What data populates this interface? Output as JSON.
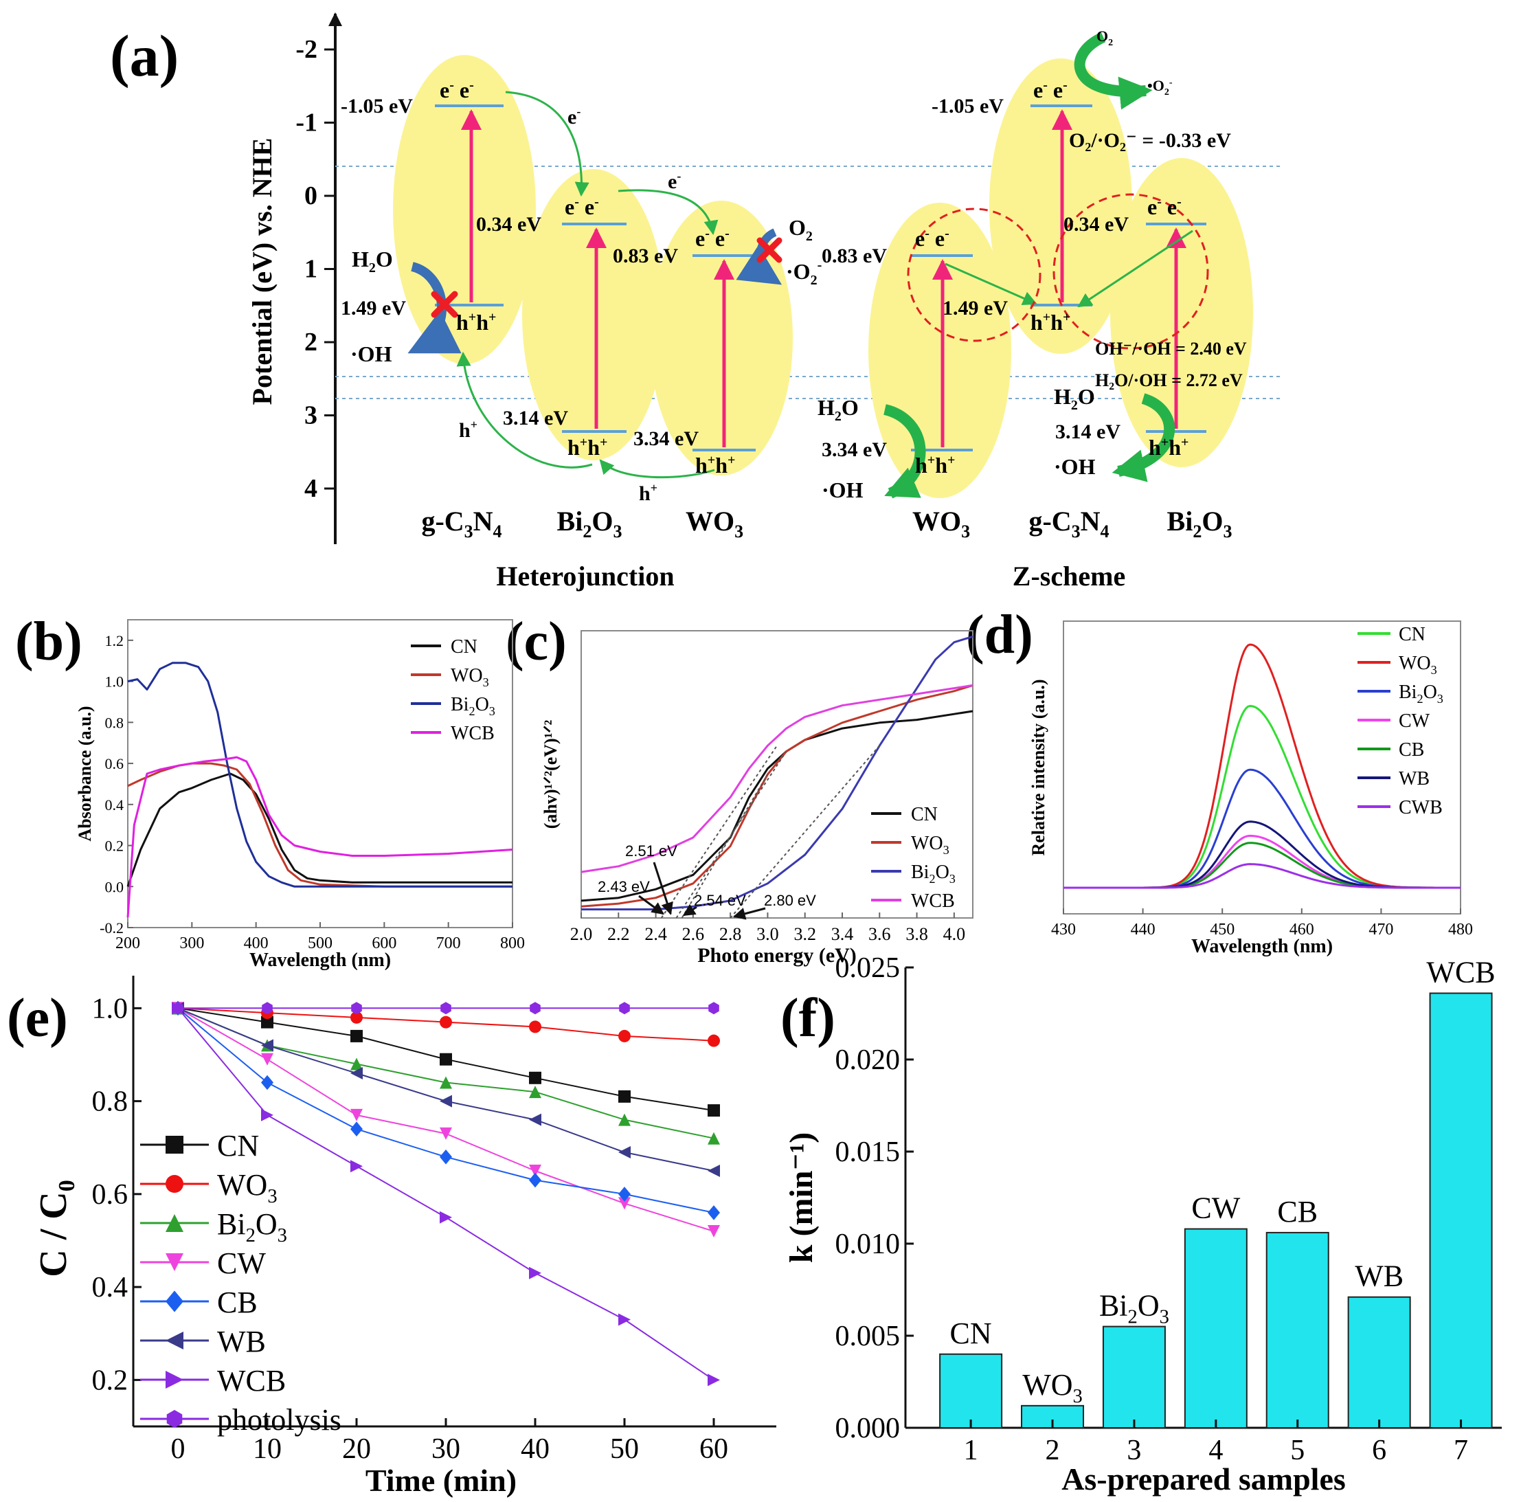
{
  "panel_labels": {
    "a": "(a)",
    "b": "(b)",
    "c": "(c)",
    "d": "(d)",
    "e": "(e)",
    "f": "(f)"
  },
  "colors": {
    "ellipse": "#fbf392",
    "band_arrow": "#f0257a",
    "band_line": "#5aa0d8",
    "green": "#2cb34a",
    "thick_green": "#26b24a",
    "cross": "#ee1c24",
    "ring": "#e02020",
    "dotted": "#7aa8cc",
    "bar": "#22e4ec"
  },
  "panel_a": {
    "ylabel": "Potential (eV) vs. NHE",
    "ticks": [
      "-2",
      "-1",
      "0",
      "1",
      "2",
      "3",
      "4"
    ],
    "heterojunction_title": "Heterojunction",
    "zscheme_title": "Z-scheme",
    "materials": {
      "het_gcn": {
        "formula": "g-C",
        "sub1": "3",
        "mid": "N",
        "sub2": "4"
      },
      "het_bi": {
        "formula": "Bi",
        "sub1": "2",
        "mid": "O",
        "sub2": "3"
      },
      "het_wo": {
        "formula": "WO",
        "sub1": "3"
      },
      "z_wo": {
        "formula": "WO",
        "sub1": "3"
      },
      "z_gcn": {
        "formula": "g-C",
        "sub1": "3",
        "mid": "N",
        "sub2": "4"
      },
      "z_bi": {
        "formula": "Bi",
        "sub1": "2",
        "mid": "O",
        "sub2": "3"
      }
    },
    "energies": {
      "gcn_cb": "-1.05 eV",
      "gcn_vb": "1.49 eV",
      "bi_cb": "0.34 eV",
      "bi_vb": "3.14 eV",
      "wo_cb": "0.83 eV",
      "wo_vb": "3.34 eV"
    },
    "carriers": {
      "ee": "e",
      "hh": "h",
      "e": "e",
      "h": "h",
      "minus": "-",
      "plus": "+"
    },
    "species": {
      "h2o": "H",
      "two": "2",
      "o": "O",
      "oh": "·OH",
      "o2": "O",
      "o2rad": "·O",
      "o2rad_full": "•O"
    },
    "redox": {
      "o2": "O₂/·O₂⁻ = -0.33 eV",
      "oh": "OH⁻/·OH = 2.40 eV",
      "h2o": "H₂O/·OH = 2.72 eV"
    }
  },
  "chart_data": [
    {
      "panel": "b",
      "type": "line",
      "xlabel": "Wavelength (nm)",
      "ylabel": "Absorbance (a.u.)",
      "xlim": [
        200,
        800
      ],
      "ylim": [
        -0.2,
        1.3
      ],
      "xticks": [
        200,
        300,
        400,
        500,
        600,
        700,
        800
      ],
      "yticks": [
        -0.2,
        0.0,
        0.2,
        0.4,
        0.6,
        0.8,
        1.0,
        1.2
      ],
      "series": [
        {
          "name": "CN",
          "color": "#111111",
          "x": [
            200,
            220,
            250,
            280,
            300,
            330,
            360,
            380,
            400,
            420,
            440,
            460,
            480,
            500,
            550,
            600,
            700,
            800
          ],
          "y": [
            0.0,
            0.18,
            0.38,
            0.46,
            0.48,
            0.52,
            0.55,
            0.52,
            0.45,
            0.33,
            0.18,
            0.08,
            0.04,
            0.03,
            0.02,
            0.02,
            0.02,
            0.02
          ]
        },
        {
          "name": "WO3",
          "color": "#c0392b",
          "x": [
            200,
            220,
            250,
            280,
            300,
            330,
            350,
            370,
            390,
            410,
            430,
            450,
            470,
            500,
            600,
            700,
            800
          ],
          "y": [
            0.49,
            0.52,
            0.56,
            0.59,
            0.6,
            0.6,
            0.59,
            0.57,
            0.5,
            0.36,
            0.2,
            0.08,
            0.03,
            0.01,
            0.0,
            0.0,
            0.0
          ]
        },
        {
          "name": "Bi2O3",
          "color": "#1f2f99",
          "x": [
            200,
            215,
            230,
            250,
            270,
            290,
            310,
            325,
            340,
            355,
            370,
            385,
            400,
            420,
            440,
            460,
            500,
            600,
            800
          ],
          "y": [
            1.0,
            1.01,
            0.96,
            1.06,
            1.09,
            1.09,
            1.07,
            1.0,
            0.85,
            0.6,
            0.38,
            0.22,
            0.12,
            0.05,
            0.02,
            0.0,
            0.0,
            0.0,
            0.0
          ]
        },
        {
          "name": "WCB",
          "color": "#e020e0",
          "x": [
            200,
            210,
            230,
            250,
            280,
            320,
            350,
            370,
            385,
            400,
            420,
            440,
            460,
            500,
            550,
            600,
            700,
            800
          ],
          "y": [
            -0.15,
            0.3,
            0.55,
            0.57,
            0.59,
            0.61,
            0.62,
            0.63,
            0.61,
            0.52,
            0.35,
            0.25,
            0.2,
            0.17,
            0.15,
            0.15,
            0.16,
            0.18
          ]
        }
      ],
      "legend": [
        "CN",
        "WO3",
        "Bi2O3",
        "WCB"
      ]
    },
    {
      "panel": "c",
      "type": "line",
      "xlabel": "Photo energy (eV)",
      "ylabel": "(ahv)¹ᐟ²(eV)¹ᐟ²",
      "xlim": [
        2.0,
        4.1
      ],
      "ylim": [
        0,
        1.0
      ],
      "xticks": [
        2.0,
        2.2,
        2.4,
        2.6,
        2.8,
        3.0,
        3.2,
        3.4,
        3.6,
        3.8,
        4.0
      ],
      "series": [
        {
          "name": "CN",
          "color": "#111111",
          "x": [
            2.0,
            2.2,
            2.4,
            2.6,
            2.8,
            2.9,
            3.0,
            3.1,
            3.2,
            3.4,
            3.6,
            3.8,
            4.0,
            4.1
          ],
          "y": [
            0.06,
            0.07,
            0.1,
            0.15,
            0.28,
            0.42,
            0.52,
            0.58,
            0.62,
            0.66,
            0.68,
            0.69,
            0.71,
            0.72
          ]
        },
        {
          "name": "WO3",
          "color": "#c0392b",
          "x": [
            2.0,
            2.2,
            2.4,
            2.6,
            2.8,
            2.9,
            3.0,
            3.1,
            3.2,
            3.4,
            3.6,
            3.8,
            4.0,
            4.1
          ],
          "y": [
            0.04,
            0.05,
            0.07,
            0.12,
            0.25,
            0.38,
            0.5,
            0.58,
            0.62,
            0.68,
            0.72,
            0.76,
            0.79,
            0.81
          ]
        },
        {
          "name": "Bi2O3",
          "color": "#3a3ab0",
          "x": [
            2.0,
            2.4,
            2.6,
            2.8,
            3.0,
            3.2,
            3.4,
            3.6,
            3.8,
            3.9,
            4.0,
            4.1
          ],
          "y": [
            0.03,
            0.03,
            0.04,
            0.06,
            0.12,
            0.22,
            0.38,
            0.6,
            0.8,
            0.9,
            0.96,
            0.98
          ]
        },
        {
          "name": "WCB",
          "color": "#e040e0",
          "x": [
            2.0,
            2.2,
            2.4,
            2.6,
            2.8,
            2.9,
            3.0,
            3.1,
            3.2,
            3.4,
            3.6,
            3.8,
            4.0,
            4.1
          ],
          "y": [
            0.16,
            0.18,
            0.22,
            0.28,
            0.42,
            0.52,
            0.6,
            0.66,
            0.7,
            0.74,
            0.76,
            0.78,
            0.8,
            0.81
          ]
        }
      ],
      "annotations": [
        "2.51 eV",
        "2.43 eV",
        "2.54 eV",
        "2.80 eV"
      ],
      "legend": [
        "CN",
        "WO3",
        "Bi2O3",
        "WCB"
      ]
    },
    {
      "panel": "d",
      "type": "line",
      "xlabel": "Wavelength (nm)",
      "ylabel": "Relative intensity (a.u.)",
      "xlim": [
        430,
        480
      ],
      "ylim": [
        0,
        1.1
      ],
      "xticks": [
        430,
        440,
        450,
        460,
        470,
        480
      ],
      "peak_center": 453.5,
      "series": [
        {
          "name": "CN",
          "color": "#33dd33",
          "peak": 0.77
        },
        {
          "name": "WO3",
          "color": "#e02020",
          "peak": 1.03
        },
        {
          "name": "Bi2O3",
          "color": "#2a3fd0",
          "peak": 0.5
        },
        {
          "name": "CW",
          "color": "#ee44ee",
          "peak": 0.22
        },
        {
          "name": "CB",
          "color": "#11991a",
          "peak": 0.19
        },
        {
          "name": "WB",
          "color": "#15157a",
          "peak": 0.28
        },
        {
          "name": "CWB",
          "color": "#9b30e8",
          "peak": 0.1
        }
      ],
      "legend": [
        "CN",
        "WO3",
        "Bi2O3",
        "CW",
        "CB",
        "WB",
        "CWB"
      ]
    },
    {
      "panel": "e",
      "type": "line",
      "xlabel": "Time (min)",
      "ylabel": "C / C0",
      "xlim": [
        -5,
        67
      ],
      "ylim": [
        0.1,
        1.07
      ],
      "xticks": [
        0,
        10,
        20,
        30,
        40,
        50,
        60
      ],
      "yticks": [
        0.2,
        0.4,
        0.6,
        0.8,
        1.0
      ],
      "x": [
        0,
        10,
        20,
        30,
        40,
        50,
        60
      ],
      "series": [
        {
          "name": "CN",
          "color": "#111111",
          "marker": "square",
          "values": [
            1.0,
            0.97,
            0.94,
            0.89,
            0.85,
            0.81,
            0.78
          ]
        },
        {
          "name": "WO3",
          "color": "#ee1111",
          "marker": "circle",
          "values": [
            1.0,
            0.99,
            0.98,
            0.97,
            0.96,
            0.94,
            0.93
          ]
        },
        {
          "name": "Bi2O3",
          "color": "#2ea02e",
          "marker": "triangle-up",
          "values": [
            1.0,
            0.92,
            0.88,
            0.84,
            0.82,
            0.76,
            0.72
          ]
        },
        {
          "name": "CW",
          "color": "#ee44dd",
          "marker": "triangle-down",
          "values": [
            1.0,
            0.89,
            0.77,
            0.73,
            0.65,
            0.58,
            0.52
          ]
        },
        {
          "name": "CB",
          "color": "#1c5ff0",
          "marker": "diamond",
          "values": [
            1.0,
            0.84,
            0.74,
            0.68,
            0.63,
            0.6,
            0.56
          ]
        },
        {
          "name": "WB",
          "color": "#3a3a8a",
          "marker": "triangle-left",
          "values": [
            1.0,
            0.92,
            0.86,
            0.8,
            0.76,
            0.69,
            0.65
          ]
        },
        {
          "name": "WCB",
          "color": "#8a2be2",
          "marker": "triangle-right",
          "values": [
            1.0,
            0.77,
            0.66,
            0.55,
            0.43,
            0.33,
            0.2
          ]
        },
        {
          "name": "photolysis",
          "color": "#8a2be2",
          "marker": "hexagon",
          "values": [
            1.0,
            1.0,
            1.0,
            1.0,
            1.0,
            1.0,
            1.0
          ]
        }
      ],
      "legend": [
        "CN",
        "WO3",
        "Bi2O3",
        "CW",
        "CB",
        "WB",
        "WCB",
        "photolysis"
      ]
    },
    {
      "panel": "f",
      "type": "bar",
      "xlabel": "As-prepared samples",
      "ylabel": "k (min⁻¹)",
      "ylim": [
        0,
        0.025
      ],
      "yticks": [
        0.0,
        0.005,
        0.01,
        0.015,
        0.02,
        0.025
      ],
      "ytick_labels": [
        "0.000",
        "0.005",
        "0.010",
        "0.015",
        "0.020",
        "0.025"
      ],
      "categories": [
        "1",
        "2",
        "3",
        "4",
        "5",
        "6",
        "7"
      ],
      "labels": [
        "CN",
        "WO3",
        "Bi2O3",
        "CW",
        "CB",
        "WB",
        "WCB"
      ],
      "values": [
        0.004,
        0.0012,
        0.0055,
        0.0108,
        0.0106,
        0.0071,
        0.0236
      ]
    }
  ]
}
